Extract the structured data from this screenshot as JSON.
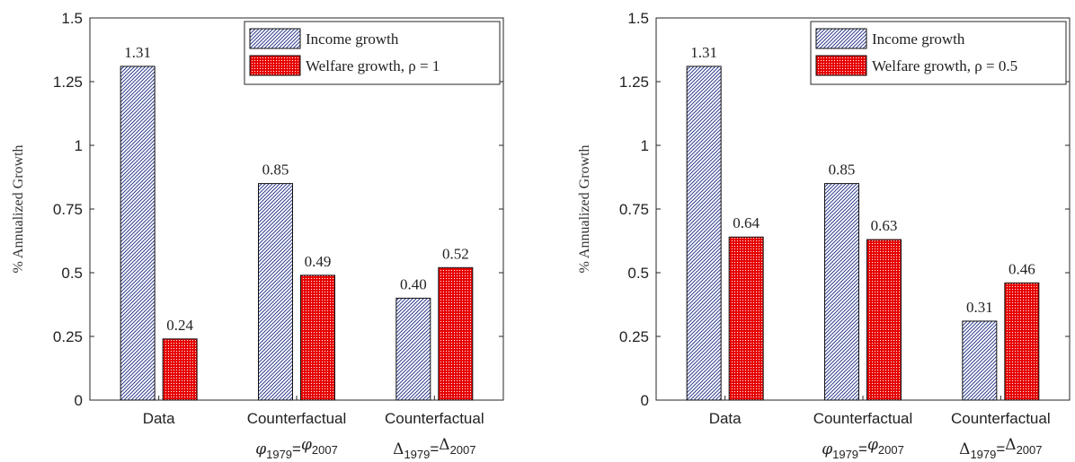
{
  "chart_data": [
    {
      "type": "bar",
      "categories": [
        "Data",
        "Counterfactual",
        "Counterfactual"
      ],
      "category_sublabels": [
        {
          "sym": "",
          "a": "",
          "b": ""
        },
        {
          "sym": "φ",
          "a": "1979",
          "b": "2007"
        },
        {
          "sym": "Δ",
          "a": "1979",
          "b": "2007"
        }
      ],
      "series": [
        {
          "name": "Income growth",
          "values": [
            1.31,
            0.85,
            0.4
          ],
          "labels": [
            "1.31",
            "0.85",
            "0.40"
          ],
          "color": "#2f3d8f",
          "pattern": "hatch"
        },
        {
          "name": "Welfare growth, ρ = 1",
          "values": [
            0.24,
            0.49,
            0.52
          ],
          "labels": [
            "0.24",
            "0.49",
            "0.52"
          ],
          "color": "#e60000",
          "pattern": "dots"
        }
      ],
      "ylabel": "% Annualized Growth",
      "ylim": [
        0,
        1.5
      ],
      "yticks": [
        "0",
        "0.25",
        "0.5",
        "0.75",
        "1",
        "1.25",
        "1.5"
      ],
      "legend": "top-right",
      "grid": false
    },
    {
      "type": "bar",
      "categories": [
        "Data",
        "Counterfactual",
        "Counterfactual"
      ],
      "category_sublabels": [
        {
          "sym": "",
          "a": "",
          "b": ""
        },
        {
          "sym": "φ",
          "a": "1979",
          "b": "2007"
        },
        {
          "sym": "Δ",
          "a": "1979",
          "b": "2007"
        }
      ],
      "series": [
        {
          "name": "Income growth",
          "values": [
            1.31,
            0.85,
            0.31
          ],
          "labels": [
            "1.31",
            "0.85",
            "0.31"
          ],
          "color": "#2f3d8f",
          "pattern": "hatch"
        },
        {
          "name": "Welfare growth, ρ = 0.5",
          "values": [
            0.64,
            0.63,
            0.46
          ],
          "labels": [
            "0.64",
            "0.63",
            "0.46"
          ],
          "color": "#e60000",
          "pattern": "dots"
        }
      ],
      "ylabel": "% Annualized Growth",
      "ylim": [
        0,
        1.5
      ],
      "yticks": [
        "0",
        "0.25",
        "0.5",
        "0.75",
        "1",
        "1.25",
        "1.5"
      ],
      "legend": "top-right",
      "grid": false
    }
  ]
}
